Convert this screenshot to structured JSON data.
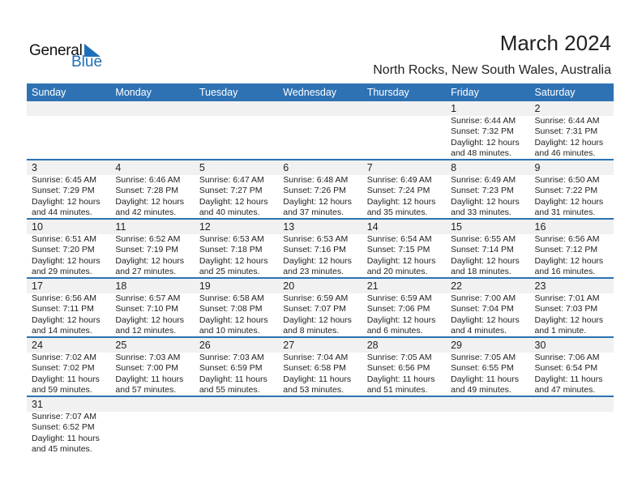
{
  "logo": {
    "general": "General",
    "blue": "Blue"
  },
  "header": {
    "title": "March 2024",
    "location": "North Rocks, New South Wales, Australia"
  },
  "colors": {
    "accent": "#2e72b4",
    "date_band": "#f1f1f1"
  },
  "weekdays": [
    "Sunday",
    "Monday",
    "Tuesday",
    "Wednesday",
    "Thursday",
    "Friday",
    "Saturday"
  ],
  "weeks": [
    [
      null,
      null,
      null,
      null,
      null,
      {
        "day": "1",
        "sunrise": "Sunrise: 6:44 AM",
        "sunset": "Sunset: 7:32 PM",
        "daylight": "Daylight: 12 hours",
        "minutes": "and 48 minutes."
      },
      {
        "day": "2",
        "sunrise": "Sunrise: 6:44 AM",
        "sunset": "Sunset: 7:31 PM",
        "daylight": "Daylight: 12 hours",
        "minutes": "and 46 minutes."
      }
    ],
    [
      {
        "day": "3",
        "sunrise": "Sunrise: 6:45 AM",
        "sunset": "Sunset: 7:29 PM",
        "daylight": "Daylight: 12 hours",
        "minutes": "and 44 minutes."
      },
      {
        "day": "4",
        "sunrise": "Sunrise: 6:46 AM",
        "sunset": "Sunset: 7:28 PM",
        "daylight": "Daylight: 12 hours",
        "minutes": "and 42 minutes."
      },
      {
        "day": "5",
        "sunrise": "Sunrise: 6:47 AM",
        "sunset": "Sunset: 7:27 PM",
        "daylight": "Daylight: 12 hours",
        "minutes": "and 40 minutes."
      },
      {
        "day": "6",
        "sunrise": "Sunrise: 6:48 AM",
        "sunset": "Sunset: 7:26 PM",
        "daylight": "Daylight: 12 hours",
        "minutes": "and 37 minutes."
      },
      {
        "day": "7",
        "sunrise": "Sunrise: 6:49 AM",
        "sunset": "Sunset: 7:24 PM",
        "daylight": "Daylight: 12 hours",
        "minutes": "and 35 minutes."
      },
      {
        "day": "8",
        "sunrise": "Sunrise: 6:49 AM",
        "sunset": "Sunset: 7:23 PM",
        "daylight": "Daylight: 12 hours",
        "minutes": "and 33 minutes."
      },
      {
        "day": "9",
        "sunrise": "Sunrise: 6:50 AM",
        "sunset": "Sunset: 7:22 PM",
        "daylight": "Daylight: 12 hours",
        "minutes": "and 31 minutes."
      }
    ],
    [
      {
        "day": "10",
        "sunrise": "Sunrise: 6:51 AM",
        "sunset": "Sunset: 7:20 PM",
        "daylight": "Daylight: 12 hours",
        "minutes": "and 29 minutes."
      },
      {
        "day": "11",
        "sunrise": "Sunrise: 6:52 AM",
        "sunset": "Sunset: 7:19 PM",
        "daylight": "Daylight: 12 hours",
        "minutes": "and 27 minutes."
      },
      {
        "day": "12",
        "sunrise": "Sunrise: 6:53 AM",
        "sunset": "Sunset: 7:18 PM",
        "daylight": "Daylight: 12 hours",
        "minutes": "and 25 minutes."
      },
      {
        "day": "13",
        "sunrise": "Sunrise: 6:53 AM",
        "sunset": "Sunset: 7:16 PM",
        "daylight": "Daylight: 12 hours",
        "minutes": "and 23 minutes."
      },
      {
        "day": "14",
        "sunrise": "Sunrise: 6:54 AM",
        "sunset": "Sunset: 7:15 PM",
        "daylight": "Daylight: 12 hours",
        "minutes": "and 20 minutes."
      },
      {
        "day": "15",
        "sunrise": "Sunrise: 6:55 AM",
        "sunset": "Sunset: 7:14 PM",
        "daylight": "Daylight: 12 hours",
        "minutes": "and 18 minutes."
      },
      {
        "day": "16",
        "sunrise": "Sunrise: 6:56 AM",
        "sunset": "Sunset: 7:12 PM",
        "daylight": "Daylight: 12 hours",
        "minutes": "and 16 minutes."
      }
    ],
    [
      {
        "day": "17",
        "sunrise": "Sunrise: 6:56 AM",
        "sunset": "Sunset: 7:11 PM",
        "daylight": "Daylight: 12 hours",
        "minutes": "and 14 minutes."
      },
      {
        "day": "18",
        "sunrise": "Sunrise: 6:57 AM",
        "sunset": "Sunset: 7:10 PM",
        "daylight": "Daylight: 12 hours",
        "minutes": "and 12 minutes."
      },
      {
        "day": "19",
        "sunrise": "Sunrise: 6:58 AM",
        "sunset": "Sunset: 7:08 PM",
        "daylight": "Daylight: 12 hours",
        "minutes": "and 10 minutes."
      },
      {
        "day": "20",
        "sunrise": "Sunrise: 6:59 AM",
        "sunset": "Sunset: 7:07 PM",
        "daylight": "Daylight: 12 hours",
        "minutes": "and 8 minutes."
      },
      {
        "day": "21",
        "sunrise": "Sunrise: 6:59 AM",
        "sunset": "Sunset: 7:06 PM",
        "daylight": "Daylight: 12 hours",
        "minutes": "and 6 minutes."
      },
      {
        "day": "22",
        "sunrise": "Sunrise: 7:00 AM",
        "sunset": "Sunset: 7:04 PM",
        "daylight": "Daylight: 12 hours",
        "minutes": "and 4 minutes."
      },
      {
        "day": "23",
        "sunrise": "Sunrise: 7:01 AM",
        "sunset": "Sunset: 7:03 PM",
        "daylight": "Daylight: 12 hours",
        "minutes": "and 1 minute."
      }
    ],
    [
      {
        "day": "24",
        "sunrise": "Sunrise: 7:02 AM",
        "sunset": "Sunset: 7:02 PM",
        "daylight": "Daylight: 11 hours",
        "minutes": "and 59 minutes."
      },
      {
        "day": "25",
        "sunrise": "Sunrise: 7:03 AM",
        "sunset": "Sunset: 7:00 PM",
        "daylight": "Daylight: 11 hours",
        "minutes": "and 57 minutes."
      },
      {
        "day": "26",
        "sunrise": "Sunrise: 7:03 AM",
        "sunset": "Sunset: 6:59 PM",
        "daylight": "Daylight: 11 hours",
        "minutes": "and 55 minutes."
      },
      {
        "day": "27",
        "sunrise": "Sunrise: 7:04 AM",
        "sunset": "Sunset: 6:58 PM",
        "daylight": "Daylight: 11 hours",
        "minutes": "and 53 minutes."
      },
      {
        "day": "28",
        "sunrise": "Sunrise: 7:05 AM",
        "sunset": "Sunset: 6:56 PM",
        "daylight": "Daylight: 11 hours",
        "minutes": "and 51 minutes."
      },
      {
        "day": "29",
        "sunrise": "Sunrise: 7:05 AM",
        "sunset": "Sunset: 6:55 PM",
        "daylight": "Daylight: 11 hours",
        "minutes": "and 49 minutes."
      },
      {
        "day": "30",
        "sunrise": "Sunrise: 7:06 AM",
        "sunset": "Sunset: 6:54 PM",
        "daylight": "Daylight: 11 hours",
        "minutes": "and 47 minutes."
      }
    ],
    [
      {
        "day": "31",
        "sunrise": "Sunrise: 7:07 AM",
        "sunset": "Sunset: 6:52 PM",
        "daylight": "Daylight: 11 hours",
        "minutes": "and 45 minutes."
      },
      null,
      null,
      null,
      null,
      null,
      null
    ]
  ]
}
